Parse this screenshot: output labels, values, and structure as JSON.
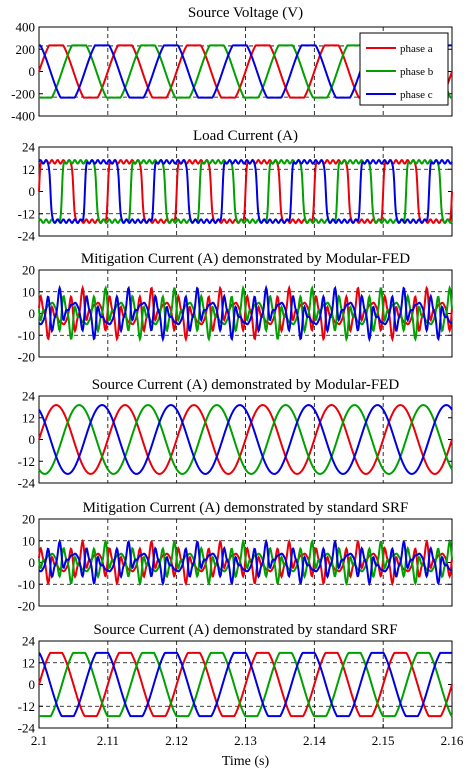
{
  "chart_data": [
    {
      "type": "line",
      "title": "Source Voltage (V)",
      "xlim": [
        2.1,
        2.16
      ],
      "ylim": [
        -400,
        400
      ],
      "yticks": [
        400,
        200,
        0,
        -200,
        -400
      ],
      "hlines": [
        -230,
        230
      ],
      "series": [
        {
          "name": "phase a",
          "color": "#e8000b",
          "amplitude": 235,
          "shape": "flat-top sine",
          "period_s": 0.01,
          "phase_deg": 0
        },
        {
          "name": "phase b",
          "color": "#00a000",
          "amplitude": 235,
          "shape": "flat-top sine",
          "period_s": 0.01,
          "phase_deg": -120
        },
        {
          "name": "phase c",
          "color": "#0000e0",
          "amplitude": 235,
          "shape": "flat-top sine",
          "period_s": 0.01,
          "phase_deg": 120
        }
      ],
      "legend": {
        "position": "top-right",
        "entries": [
          "phase a",
          "phase b",
          "phase c"
        ]
      }
    },
    {
      "type": "line",
      "title": "Load Current (A)",
      "xlim": [
        2.1,
        2.16
      ],
      "ylim": [
        -24,
        24
      ],
      "yticks": [
        24,
        12,
        0,
        -12,
        -24
      ],
      "hlines": [
        -12,
        12
      ],
      "series": [
        {
          "color": "#e8000b",
          "amplitude": 16,
          "shape": "square",
          "period_s": 0.01,
          "phase_deg": 0
        },
        {
          "color": "#00a000",
          "amplitude": 16,
          "shape": "square",
          "period_s": 0.01,
          "phase_deg": -120
        },
        {
          "color": "#0000e0",
          "amplitude": 16,
          "shape": "square",
          "period_s": 0.01,
          "phase_deg": 120
        }
      ]
    },
    {
      "type": "line",
      "title": "Mitigation Current (A) demonstrated by Modular-FED",
      "xlim": [
        2.1,
        2.16
      ],
      "ylim": [
        -20,
        20
      ],
      "yticks": [
        20,
        10,
        0,
        -10,
        -20
      ],
      "hlines": [
        -10,
        10
      ],
      "series": [
        {
          "color": "#e8000b",
          "amplitude": 11,
          "shape": "harmonic",
          "period_s": 0.01,
          "phase_deg": 0
        },
        {
          "color": "#00a000",
          "amplitude": 11,
          "shape": "harmonic",
          "period_s": 0.01,
          "phase_deg": -120
        },
        {
          "color": "#0000e0",
          "amplitude": 11,
          "shape": "harmonic",
          "period_s": 0.01,
          "phase_deg": 120
        }
      ]
    },
    {
      "type": "line",
      "title": "Source Current (A) demonstrated by Modular-FED",
      "xlim": [
        2.1,
        2.16
      ],
      "ylim": [
        -24,
        24
      ],
      "yticks": [
        24,
        12,
        0,
        -12,
        -24
      ],
      "hlines": [],
      "series": [
        {
          "color": "#e8000b",
          "amplitude": 19,
          "shape": "sine",
          "period_s": 0.01,
          "phase_deg": 0
        },
        {
          "color": "#00a000",
          "amplitude": 19,
          "shape": "sine",
          "period_s": 0.01,
          "phase_deg": -120
        },
        {
          "color": "#0000e0",
          "amplitude": 19,
          "shape": "sine",
          "period_s": 0.01,
          "phase_deg": 120
        }
      ]
    },
    {
      "type": "line",
      "title": "Mitigation Current (A) demonstrated by standard SRF",
      "xlim": [
        2.1,
        2.16
      ],
      "ylim": [
        -20,
        20
      ],
      "yticks": [
        20,
        10,
        0,
        -10,
        -20
      ],
      "hlines": [
        -10,
        10
      ],
      "series": [
        {
          "color": "#e8000b",
          "amplitude": 9,
          "shape": "harmonic",
          "period_s": 0.01,
          "phase_deg": 0
        },
        {
          "color": "#00a000",
          "amplitude": 9,
          "shape": "harmonic",
          "period_s": 0.01,
          "phase_deg": -120
        },
        {
          "color": "#0000e0",
          "amplitude": 9,
          "shape": "harmonic",
          "period_s": 0.01,
          "phase_deg": 120
        }
      ]
    },
    {
      "type": "line",
      "title": "Source Current (A) demonstrated by standard SRF",
      "xlim": [
        2.1,
        2.16
      ],
      "ylim": [
        -24,
        24
      ],
      "yticks": [
        24,
        12,
        0,
        -12,
        -24
      ],
      "hlines": [
        -12,
        12
      ],
      "xticks": [
        "2.1",
        "2.11",
        "2.12",
        "2.13",
        "2.14",
        "2.15",
        "2.16"
      ],
      "xlabel": "Time (s)",
      "series": [
        {
          "color": "#e8000b",
          "amplitude": 19,
          "shape": "clipped sine",
          "period_s": 0.01,
          "phase_deg": 0
        },
        {
          "color": "#00a000",
          "amplitude": 19,
          "shape": "clipped sine",
          "period_s": 0.01,
          "phase_deg": -120
        },
        {
          "color": "#0000e0",
          "amplitude": 19,
          "shape": "clipped sine",
          "period_s": 0.01,
          "phase_deg": 120
        }
      ]
    }
  ]
}
